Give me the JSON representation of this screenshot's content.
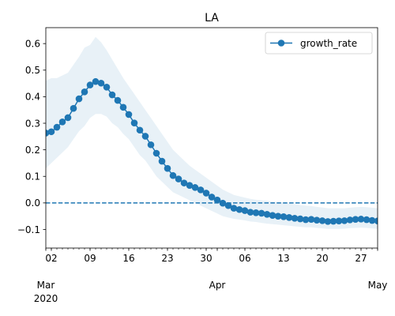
{
  "chart_data": {
    "type": "line",
    "title": "LA",
    "xlabel": "",
    "ylabel": "",
    "x_range": [
      "2020-03-01",
      "2020-04-30"
    ],
    "ylim": [
      -0.17,
      0.66
    ],
    "y_ticks": [
      -0.1,
      0.0,
      0.1,
      0.2,
      0.3,
      0.4,
      0.5,
      0.6
    ],
    "y_tick_labels": [
      "−0.1",
      "0.0",
      "0.1",
      "0.2",
      "0.3",
      "0.4",
      "0.5",
      "0.6"
    ],
    "x_ticks": [
      {
        "date": "2020-03-02",
        "label": "02"
      },
      {
        "date": "2020-03-09",
        "label": "09"
      },
      {
        "date": "2020-03-16",
        "label": "16"
      },
      {
        "date": "2020-03-23",
        "label": "23"
      },
      {
        "date": "2020-03-30",
        "label": "30"
      },
      {
        "date": "2020-04-06",
        "label": "06"
      },
      {
        "date": "2020-04-13",
        "label": "13"
      },
      {
        "date": "2020-04-20",
        "label": "20"
      },
      {
        "date": "2020-04-27",
        "label": "27"
      }
    ],
    "x_major_ticks": [
      {
        "date": "2020-03-01",
        "label": "Mar",
        "year": "2020"
      },
      {
        "date": "2020-04-01",
        "label": "Apr",
        "year": ""
      },
      {
        "date": "2020-05-01",
        "label": "May",
        "year": ""
      }
    ],
    "legend": {
      "position": "top-right"
    },
    "reference_line": {
      "y": 0.0,
      "style": "dashed",
      "color": "#1f77b4"
    },
    "series": [
      {
        "name": "growth_rate",
        "color": "#1f77b4",
        "marker": "circle",
        "band_color": "#1f77b4",
        "x": [
          "2020-03-01",
          "2020-03-02",
          "2020-03-03",
          "2020-03-04",
          "2020-03-05",
          "2020-03-06",
          "2020-03-07",
          "2020-03-08",
          "2020-03-09",
          "2020-03-10",
          "2020-03-11",
          "2020-03-12",
          "2020-03-13",
          "2020-03-14",
          "2020-03-15",
          "2020-03-16",
          "2020-03-17",
          "2020-03-18",
          "2020-03-19",
          "2020-03-20",
          "2020-03-21",
          "2020-03-22",
          "2020-03-23",
          "2020-03-24",
          "2020-03-25",
          "2020-03-26",
          "2020-03-27",
          "2020-03-28",
          "2020-03-29",
          "2020-03-30",
          "2020-03-31",
          "2020-04-01",
          "2020-04-02",
          "2020-04-03",
          "2020-04-04",
          "2020-04-05",
          "2020-04-06",
          "2020-04-07",
          "2020-04-08",
          "2020-04-09",
          "2020-04-10",
          "2020-04-11",
          "2020-04-12",
          "2020-04-13",
          "2020-04-14",
          "2020-04-15",
          "2020-04-16",
          "2020-04-17",
          "2020-04-18",
          "2020-04-19",
          "2020-04-20",
          "2020-04-21",
          "2020-04-22",
          "2020-04-23",
          "2020-04-24",
          "2020-04-25",
          "2020-04-26",
          "2020-04-27",
          "2020-04-28",
          "2020-04-29",
          "2020-04-30"
        ],
        "values": [
          0.263,
          0.268,
          0.285,
          0.305,
          0.321,
          0.356,
          0.392,
          0.418,
          0.444,
          0.457,
          0.451,
          0.436,
          0.407,
          0.386,
          0.36,
          0.333,
          0.301,
          0.274,
          0.251,
          0.219,
          0.187,
          0.157,
          0.13,
          0.103,
          0.09,
          0.075,
          0.066,
          0.058,
          0.049,
          0.037,
          0.022,
          0.011,
          -0.001,
          -0.01,
          -0.02,
          -0.025,
          -0.029,
          -0.035,
          -0.037,
          -0.039,
          -0.043,
          -0.047,
          -0.05,
          -0.052,
          -0.055,
          -0.058,
          -0.06,
          -0.063,
          -0.062,
          -0.065,
          -0.067,
          -0.07,
          -0.069,
          -0.068,
          -0.067,
          -0.064,
          -0.062,
          -0.061,
          -0.063,
          -0.066,
          -0.068
        ],
        "lower": [
          0.13,
          0.15,
          0.17,
          0.19,
          0.21,
          0.24,
          0.27,
          0.29,
          0.32,
          0.335,
          0.335,
          0.325,
          0.3,
          0.285,
          0.26,
          0.24,
          0.21,
          0.18,
          0.16,
          0.13,
          0.1,
          0.08,
          0.06,
          0.04,
          0.03,
          0.02,
          0.01,
          0.0,
          -0.01,
          -0.02,
          -0.03,
          -0.04,
          -0.05,
          -0.055,
          -0.06,
          -0.063,
          -0.066,
          -0.07,
          -0.072,
          -0.075,
          -0.078,
          -0.08,
          -0.082,
          -0.084,
          -0.086,
          -0.088,
          -0.09,
          -0.092,
          -0.092,
          -0.094,
          -0.096,
          -0.098,
          -0.098,
          -0.098,
          -0.097,
          -0.095,
          -0.094,
          -0.093,
          -0.094,
          -0.096,
          -0.098
        ],
        "upper": [
          0.46,
          0.47,
          0.47,
          0.48,
          0.49,
          0.52,
          0.55,
          0.585,
          0.595,
          0.625,
          0.605,
          0.575,
          0.54,
          0.505,
          0.47,
          0.44,
          0.41,
          0.38,
          0.35,
          0.32,
          0.29,
          0.26,
          0.23,
          0.2,
          0.18,
          0.16,
          0.14,
          0.125,
          0.11,
          0.095,
          0.08,
          0.065,
          0.05,
          0.04,
          0.03,
          0.025,
          0.02,
          0.015,
          0.012,
          0.01,
          0.008,
          0.005,
          0.003,
          0.001,
          -0.002,
          -0.005,
          -0.008,
          -0.01,
          -0.012,
          -0.015,
          -0.017,
          -0.02,
          -0.02,
          -0.02,
          -0.02,
          -0.018,
          -0.016,
          -0.015,
          -0.016,
          -0.018,
          -0.02
        ]
      }
    ]
  }
}
